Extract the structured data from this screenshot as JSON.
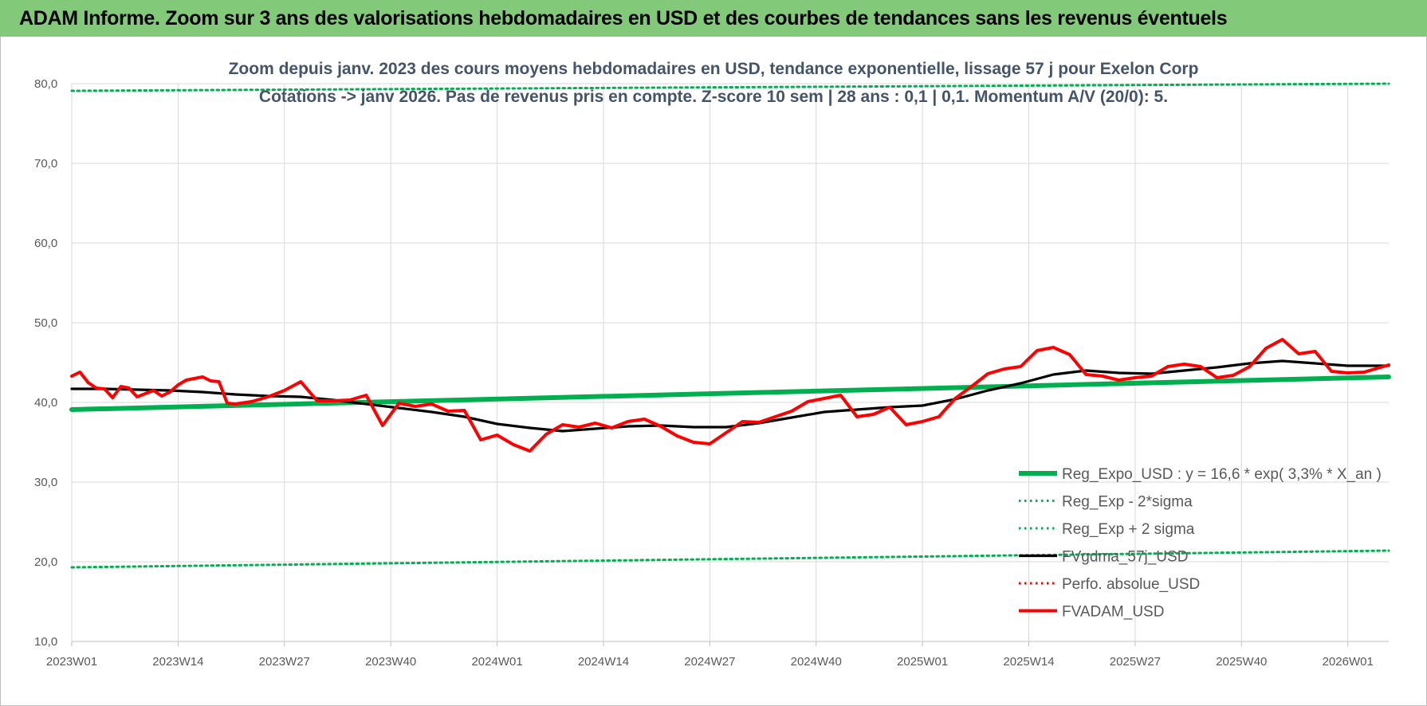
{
  "banner": {
    "title": "ADAM Informe. Zoom sur 3 ans des valorisations hebdomadaires en USD et des courbes de tendances sans les revenus éventuels"
  },
  "chart_data": {
    "type": "line",
    "title_lines": [
      "Zoom depuis janv. 2023 des cours moyens hebdomadaires en USD, tendance exponentielle, lissage 57 j pour Exelon Corp",
      "Cotations -> janv 2026. Pas de revenus pris en compte. Z-score 10 sem | 28 ans : 0,1 | 0,1. Momentum A/V (20/0): 5."
    ],
    "ylim": [
      10,
      80
    ],
    "y_ticks": [
      "10,0",
      "20,0",
      "30,0",
      "40,0",
      "50,0",
      "60,0",
      "70,0",
      "80,0"
    ],
    "y_tick_values": [
      10,
      20,
      30,
      40,
      50,
      60,
      70,
      80
    ],
    "x_tick_labels": [
      "2023W01",
      "2023W14",
      "2023W27",
      "2023W40",
      "2024W01",
      "2024W14",
      "2024W27",
      "2024W40",
      "2025W01",
      "2025W14",
      "2025W27",
      "2025W40",
      "2026W01"
    ],
    "x_tick_weeks": [
      0,
      13,
      26,
      39,
      52,
      65,
      78,
      91,
      104,
      117,
      130,
      143,
      156
    ],
    "x_range_weeks": [
      0,
      161
    ],
    "grid": true,
    "legend_position": "bottom-right",
    "series": [
      {
        "name": "Reg_Expo_USD : y = 16,6 * exp( 3,3% *  X_an )",
        "color": "#00b050",
        "style": "solid-thick",
        "x": [
          0,
          161
        ],
        "values": [
          39.1,
          43.2
        ]
      },
      {
        "name": "Reg_Exp - 2*sigma",
        "color": "#00b050",
        "style": "dotted",
        "x": [
          0,
          161
        ],
        "values": [
          19.3,
          21.4
        ]
      },
      {
        "name": "Reg_Exp + 2 sigma",
        "color": "#00b050",
        "style": "dotted",
        "x": [
          0,
          161
        ],
        "values": [
          79.1,
          81.6
        ]
      },
      {
        "name": "FVgdma_57j_USD",
        "color": "#000000",
        "style": "solid",
        "x": [
          0,
          4,
          8,
          12,
          16,
          20,
          24,
          28,
          32,
          36,
          40,
          44,
          48,
          52,
          56,
          60,
          64,
          68,
          72,
          76,
          80,
          84,
          88,
          92,
          96,
          100,
          104,
          108,
          112,
          116,
          120,
          124,
          128,
          132,
          136,
          140,
          144,
          148,
          152,
          156,
          161
        ],
        "values": [
          41.7,
          41.7,
          41.6,
          41.5,
          41.3,
          41.0,
          40.8,
          40.7,
          40.3,
          39.8,
          39.3,
          38.8,
          38.2,
          37.3,
          36.8,
          36.4,
          36.7,
          37.0,
          37.1,
          36.9,
          36.9,
          37.4,
          38.1,
          38.8,
          39.1,
          39.4,
          39.6,
          40.4,
          41.5,
          42.4,
          43.5,
          44.0,
          43.7,
          43.6,
          44.0,
          44.4,
          44.9,
          45.2,
          44.9,
          44.6,
          44.6
        ]
      },
      {
        "name": "Perfo. absolue_USD",
        "color": "#ff0000",
        "style": "dotted",
        "x": [],
        "values": []
      },
      {
        "name": "FVADAM_USD",
        "color": "#ff0000",
        "style": "solid-thick",
        "x": [
          0,
          1,
          2,
          3,
          4,
          5,
          6,
          7,
          8,
          9,
          10,
          11,
          12,
          13,
          14,
          15,
          16,
          17,
          18,
          19,
          20,
          22,
          24,
          26,
          28,
          30,
          32,
          34,
          36,
          38,
          40,
          42,
          44,
          46,
          48,
          50,
          52,
          54,
          56,
          58,
          60,
          62,
          64,
          66,
          68,
          70,
          72,
          74,
          76,
          78,
          80,
          82,
          84,
          86,
          88,
          90,
          92,
          94,
          96,
          98,
          100,
          102,
          104,
          106,
          108,
          110,
          112,
          114,
          116,
          118,
          120,
          122,
          124,
          126,
          128,
          130,
          132,
          134,
          136,
          138,
          140,
          142,
          144,
          146,
          148,
          150,
          152,
          154,
          156,
          158,
          161
        ],
        "values": [
          43.3,
          43.8,
          42.5,
          41.8,
          41.7,
          40.6,
          42.0,
          41.8,
          40.7,
          41.1,
          41.5,
          40.8,
          41.3,
          42.2,
          42.8,
          43.0,
          43.2,
          42.7,
          42.6,
          39.9,
          39.8,
          40.1,
          40.7,
          41.5,
          42.6,
          40.2,
          40.2,
          40.3,
          40.9,
          37.1,
          39.9,
          39.5,
          39.8,
          38.9,
          39.0,
          35.3,
          35.9,
          34.7,
          33.9,
          36.0,
          37.2,
          36.9,
          37.4,
          36.8,
          37.6,
          37.9,
          37.0,
          35.8,
          35.0,
          34.8,
          36.2,
          37.6,
          37.5,
          38.2,
          38.9,
          40.1,
          40.5,
          40.9,
          38.2,
          38.5,
          39.4,
          37.2,
          37.6,
          38.2,
          40.5,
          42.0,
          43.6,
          44.2,
          44.5,
          46.5,
          46.9,
          46.0,
          43.5,
          43.3,
          42.8,
          43.1,
          43.3,
          44.5,
          44.8,
          44.5,
          43.1,
          43.4,
          44.5,
          46.8,
          47.9,
          46.1,
          46.4,
          43.9,
          43.7,
          43.8,
          44.7
        ]
      }
    ]
  }
}
